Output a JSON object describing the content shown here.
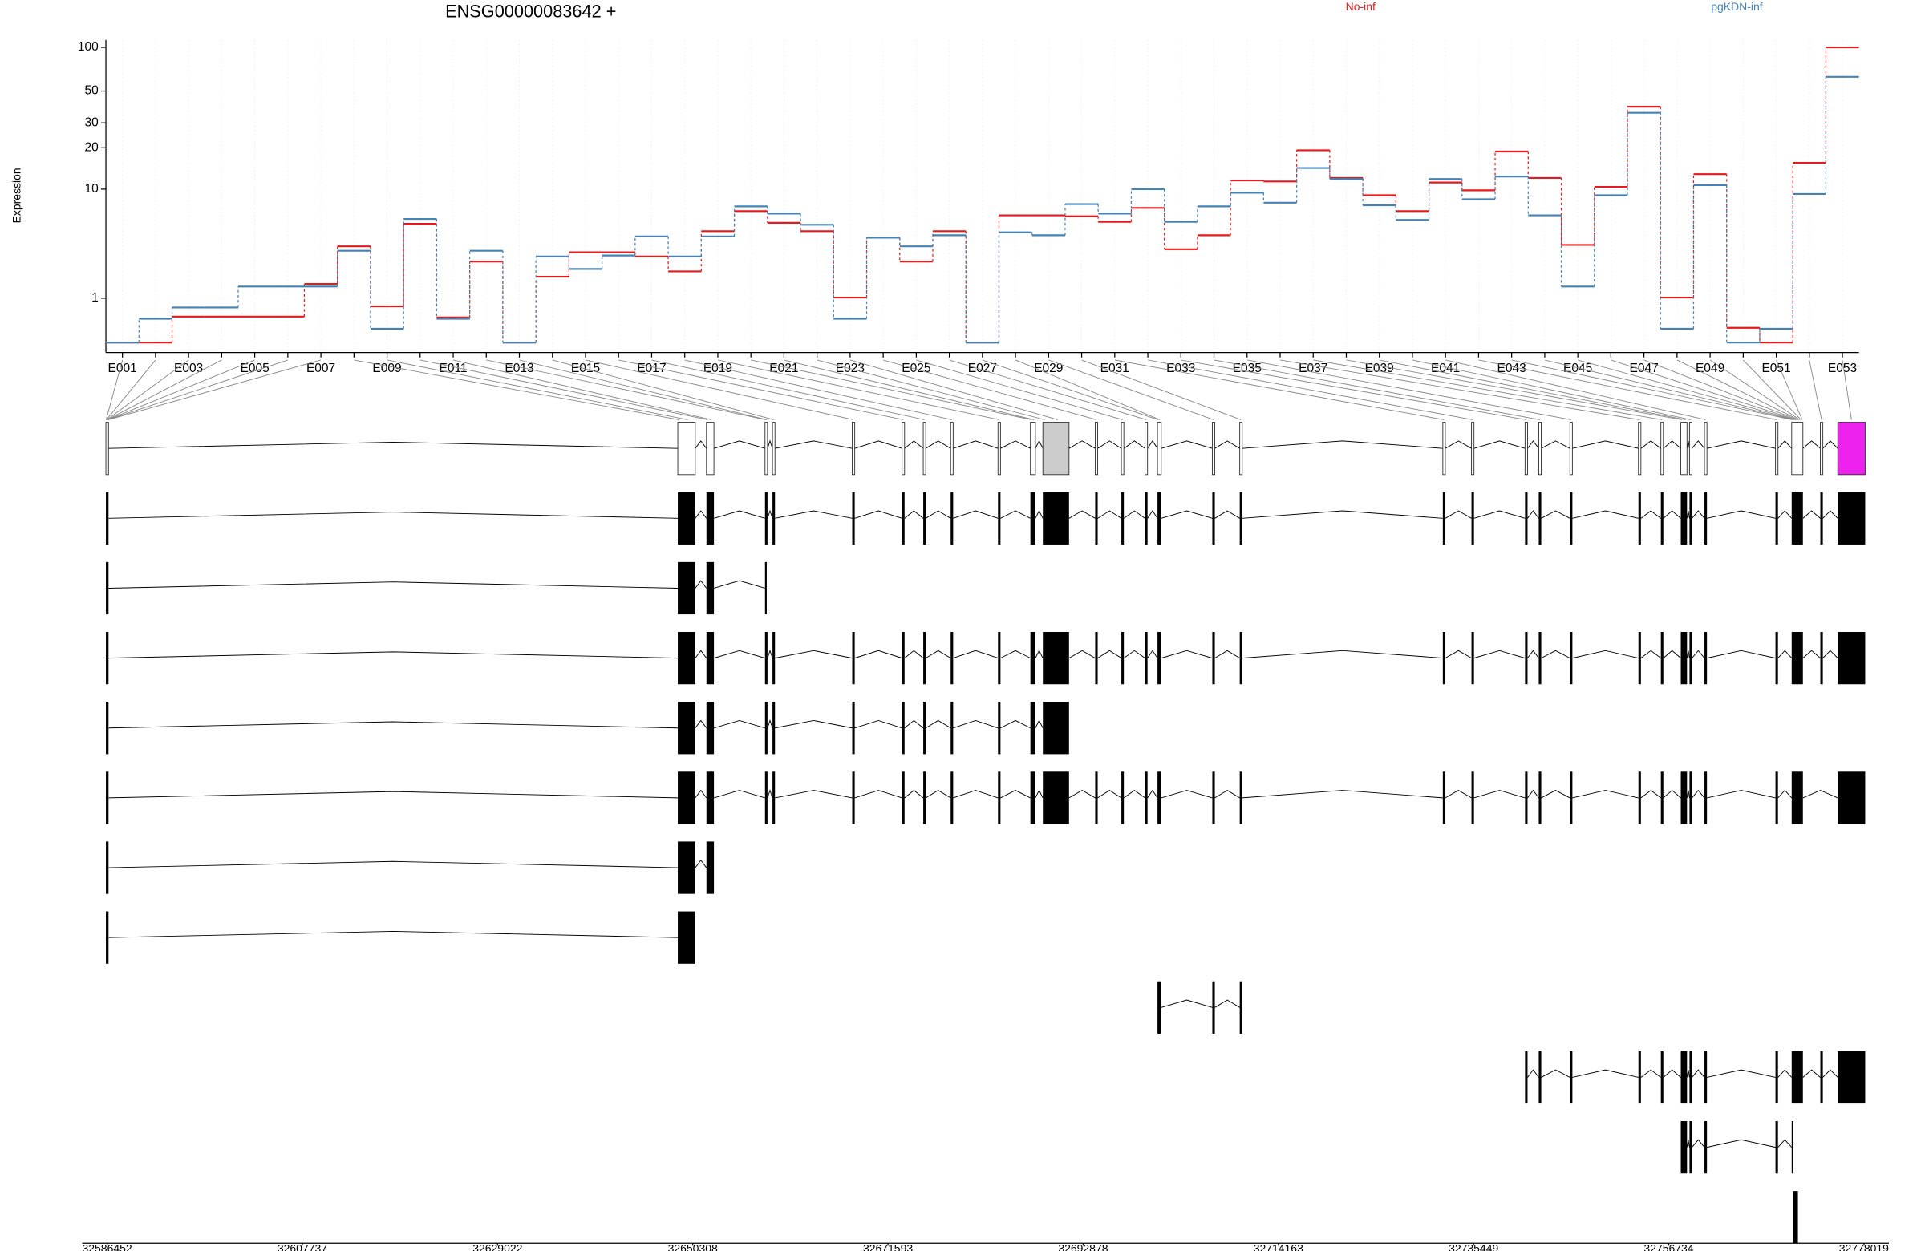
{
  "chart_data": {
    "type": "line",
    "title": "ENSG00000083642 +",
    "y_label": "Expression",
    "log_scale": true,
    "ylim": [
      0,
      100
    ],
    "yticks": [
      1,
      10,
      20,
      30,
      50,
      100
    ],
    "categories": [
      "E001",
      null,
      "E003",
      null,
      "E005",
      null,
      "E007",
      null,
      "E009",
      null,
      "E011",
      null,
      "E013",
      null,
      "E015",
      null,
      "E017",
      null,
      "E019",
      null,
      "E021",
      null,
      "E023",
      null,
      "E025",
      null,
      "E027",
      null,
      "E029",
      null,
      "E031",
      null,
      "E033",
      null,
      "E035",
      null,
      "E037",
      null,
      "E039",
      null,
      "E041",
      null,
      "E043",
      null,
      "E045",
      null,
      "E047",
      null,
      "E049",
      null,
      "E051",
      null,
      "E053"
    ],
    "series": [
      {
        "name": "No-inf",
        "color": "#e41a1c",
        "values": [
          0,
          0,
          0.5,
          0.5,
          0.5,
          0.5,
          1.5,
          3.5,
          0.76,
          5.4,
          0.48,
          2.55,
          0,
          1.8,
          3.1,
          3.1,
          2.84,
          2.04,
          4.7,
          6.8,
          5.5,
          4.7,
          1.02,
          4.15,
          2.55,
          4.7,
          0,
          6.3,
          6.3,
          6.2,
          5.6,
          7.2,
          3.3,
          4.35,
          11.6,
          11.4,
          19.2,
          12.1,
          9,
          6.8,
          11.2,
          9.8,
          18.8,
          12.1,
          3.6,
          10.4,
          38.9,
          1.02,
          12.9,
          0.26,
          0,
          15.6,
          100
        ]
      },
      {
        "name": "pgKDN-inf",
        "color": "#4682b4",
        "values": [
          0,
          0.45,
          0.73,
          0.73,
          1.4,
          1.4,
          1.4,
          3.2,
          0.24,
          5.9,
          0.45,
          3.2,
          0,
          2.84,
          2.16,
          2.9,
          4.25,
          2.84,
          4.25,
          7.4,
          6.5,
          5.3,
          0.45,
          4.15,
          3.5,
          4.35,
          0,
          4.6,
          4.35,
          7.7,
          6.5,
          10,
          5.6,
          7.4,
          9.4,
          7.9,
          14.3,
          11.9,
          7.55,
          5.8,
          11.9,
          8.4,
          12.4,
          6.3,
          1.4,
          9,
          35.3,
          0.24,
          10.7,
          0,
          0.24,
          9.2,
          62.7
        ]
      }
    ],
    "genome_axis": {
      "xlim": [
        32586452,
        32778019
      ],
      "xticks": [
        32586452,
        32607737,
        32629022,
        32650308,
        32671593,
        32692878,
        32714163,
        32735449,
        32756734,
        32778019
      ]
    }
  }
}
